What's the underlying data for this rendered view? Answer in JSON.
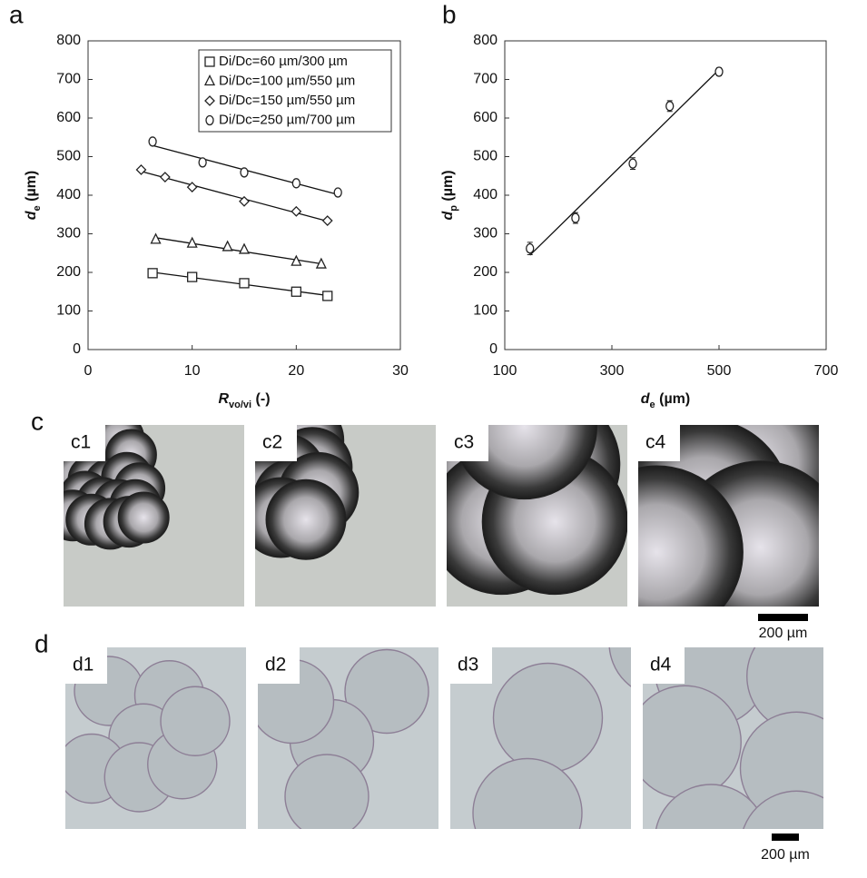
{
  "chart_data": [
    {
      "type": "scatter",
      "panel_label": "a",
      "xlabel": {
        "main": "R",
        "sub": "vo/vi",
        "unit": " (-)"
      },
      "ylabel": {
        "main": "d",
        "sub": "e",
        "unit": " (µm)"
      },
      "xlim": [
        0,
        30
      ],
      "xticks": [
        0,
        10,
        20,
        30
      ],
      "ylim": [
        0,
        800
      ],
      "yticks": [
        0,
        100,
        200,
        300,
        400,
        500,
        600,
        700,
        800
      ],
      "fit_lines": true,
      "legend": "top-right",
      "series": [
        {
          "name": "Di/Dc=60 µm/300 µm",
          "marker": "square",
          "color": "#333333",
          "x": [
            6.2,
            10,
            15,
            20,
            23
          ],
          "values": [
            198,
            188,
            172,
            150,
            139
          ]
        },
        {
          "name": "Di/Dc=100 µm/550 µm",
          "marker": "triangle",
          "color": "#333333",
          "x": [
            6.5,
            10,
            13.4,
            15,
            20,
            22.4
          ],
          "values": [
            285,
            275,
            266,
            259,
            228,
            221
          ]
        },
        {
          "name": "Di/Dc=150 µm/550 µm",
          "marker": "diamond",
          "color": "#333333",
          "x": [
            5.1,
            7.4,
            10,
            15,
            20,
            23
          ],
          "values": [
            466,
            447,
            421,
            384,
            358,
            334
          ]
        },
        {
          "name": "Di/Dc=250 µm/700 µm",
          "marker": "circle",
          "color": "#333333",
          "x": [
            6.2,
            11,
            15,
            20,
            24
          ],
          "values": [
            539,
            485,
            459,
            431,
            407
          ]
        }
      ]
    },
    {
      "type": "scatter",
      "panel_label": "b",
      "xlabel": {
        "main": "d",
        "sub": "e",
        "unit": " (µm)"
      },
      "ylabel": {
        "main": "d",
        "sub": "p",
        "unit": " (µm)"
      },
      "xlim": [
        100,
        700
      ],
      "xticks": [
        100,
        300,
        500,
        700
      ],
      "ylim": [
        0,
        800
      ],
      "yticks": [
        0,
        100,
        200,
        300,
        400,
        500,
        600,
        700,
        800
      ],
      "fit_lines": true,
      "series": [
        {
          "marker": "circle",
          "color": "#333333",
          "x": [
            147,
            232,
            339,
            408,
            500
          ],
          "values": [
            262,
            341,
            482,
            631,
            720
          ],
          "errors": [
            16,
            14,
            15,
            14,
            10
          ]
        }
      ]
    }
  ],
  "micrographs": [
    {
      "panel_label": "c",
      "images": [
        "c1",
        "c2",
        "c3",
        "c4"
      ],
      "scale_bar": "200 µm"
    },
    {
      "panel_label": "d",
      "images": [
        "d1",
        "d2",
        "d3",
        "d4"
      ],
      "scale_bar": "200 µm"
    }
  ]
}
